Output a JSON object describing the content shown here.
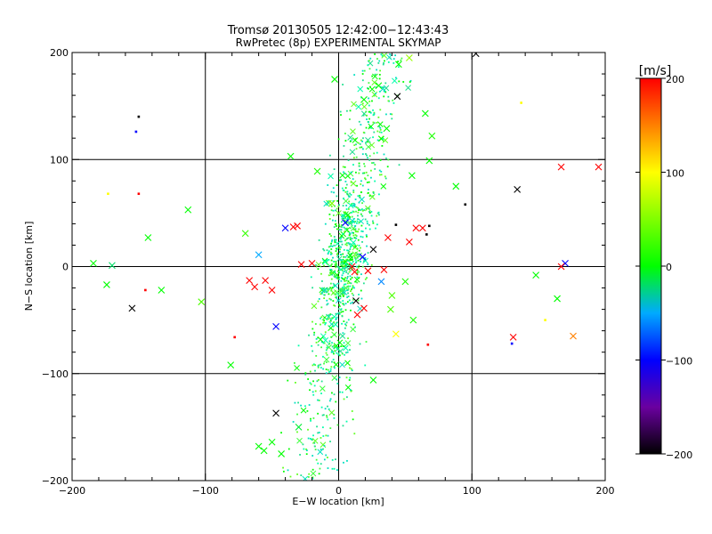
{
  "chart_data": {
    "type": "scatter",
    "title": "Tromsø 20130505 12:42:00−12:43:43",
    "subtitle": "RwPretec (8p) EXPERIMENTAL SKYMAP",
    "xlabel": "E−W location [km]",
    "ylabel": "N−S location [km]",
    "xlim": [
      -200,
      200
    ],
    "ylim": [
      -200,
      200
    ],
    "xticks": [
      -200,
      -100,
      0,
      100,
      200
    ],
    "yticks": [
      -200,
      -100,
      0,
      100,
      200
    ],
    "xtick_labels": [
      "−200",
      "−100",
      "0",
      "100",
      "200"
    ],
    "ytick_labels": [
      "−200",
      "−100",
      "0",
      "100",
      "200"
    ],
    "grid": true,
    "colorbar": {
      "label": "[m/s]",
      "range": [
        -200,
        200
      ],
      "ticks": [
        200,
        100,
        0,
        -100,
        -200
      ],
      "tick_labels": [
        "200",
        "100",
        "0",
        "−100",
        "−200"
      ],
      "colormap_stops": [
        {
          "value": -200,
          "color": "#000000"
        },
        {
          "value": -150,
          "color": "#6a00a0"
        },
        {
          "value": -100,
          "color": "#0000ff"
        },
        {
          "value": -50,
          "color": "#00aaff"
        },
        {
          "value": 0,
          "color": "#00ff00"
        },
        {
          "value": 50,
          "color": "#80ff00"
        },
        {
          "value": 100,
          "color": "#ffff00"
        },
        {
          "value": 150,
          "color": "#ff8000"
        },
        {
          "value": 200,
          "color": "#ff0000"
        }
      ]
    },
    "dot_cloud": {
      "note": "dense cloud of small dot markers, predominantly green-cyan (~0 m/s)",
      "count": 1100,
      "colors": [
        "#00ff00",
        "#00ffaa",
        "#20e090",
        "#40ff40",
        "#00e0c0",
        "#60ff20"
      ]
    },
    "points": [
      {
        "x": 103,
        "y": 199,
        "v": -200,
        "m": "x"
      },
      {
        "x": 44,
        "y": 159,
        "v": -200,
        "m": "x"
      },
      {
        "x": 134,
        "y": 72,
        "v": -200,
        "m": "x"
      },
      {
        "x": 167,
        "y": 93,
        "v": 200,
        "m": "x"
      },
      {
        "x": 195,
        "y": 93,
        "v": 200,
        "m": "x"
      },
      {
        "x": 170,
        "y": 3,
        "v": -100,
        "m": "x"
      },
      {
        "x": 167,
        "y": 0,
        "v": 200,
        "m": "x"
      },
      {
        "x": 176,
        "y": -65,
        "v": 150,
        "m": "x"
      },
      {
        "x": 131,
        "y": -66,
        "v": 200,
        "m": "x"
      },
      {
        "x": -155,
        "y": -39,
        "v": -200,
        "m": "x"
      },
      {
        "x": -47,
        "y": -137,
        "v": -200,
        "m": "x"
      },
      {
        "x": -40,
        "y": 36,
        "v": -100,
        "m": "x"
      },
      {
        "x": -34,
        "y": 37,
        "v": 200,
        "m": "x"
      },
      {
        "x": -31,
        "y": 38,
        "v": 200,
        "m": "x"
      },
      {
        "x": -63,
        "y": -19,
        "v": 200,
        "m": "x"
      },
      {
        "x": -55,
        "y": -13,
        "v": 200,
        "m": "x"
      },
      {
        "x": -50,
        "y": -22,
        "v": 200,
        "m": "x"
      },
      {
        "x": -67,
        "y": -13,
        "v": 200,
        "m": "x"
      },
      {
        "x": -47,
        "y": -56,
        "v": -100,
        "m": "x"
      },
      {
        "x": -60,
        "y": 11,
        "v": -50,
        "m": "x"
      },
      {
        "x": 10,
        "y": 0,
        "v": 200,
        "m": "x"
      },
      {
        "x": 12,
        "y": -5,
        "v": 200,
        "m": "x"
      },
      {
        "x": 22,
        "y": -4,
        "v": 200,
        "m": "x"
      },
      {
        "x": 34,
        "y": -3,
        "v": 200,
        "m": "x"
      },
      {
        "x": 13,
        "y": -32,
        "v": -200,
        "m": "x"
      },
      {
        "x": 26,
        "y": 16,
        "v": -200,
        "m": "x"
      },
      {
        "x": 18,
        "y": 9,
        "v": -100,
        "m": "x"
      },
      {
        "x": 37,
        "y": 27,
        "v": 200,
        "m": "x"
      },
      {
        "x": 53,
        "y": 23,
        "v": 200,
        "m": "x"
      },
      {
        "x": 58,
        "y": 36,
        "v": 200,
        "m": "x"
      },
      {
        "x": 63,
        "y": 36,
        "v": 200,
        "m": "x"
      },
      {
        "x": 14,
        "y": -45,
        "v": 200,
        "m": "x"
      },
      {
        "x": 19,
        "y": -39,
        "v": 200,
        "m": "x"
      },
      {
        "x": -28,
        "y": 2,
        "v": 200,
        "m": "x"
      },
      {
        "x": -20,
        "y": 3,
        "v": 200,
        "m": "x"
      },
      {
        "x": 43,
        "y": -63,
        "v": 100,
        "m": "x"
      },
      {
        "x": 5,
        "y": 41,
        "v": -100,
        "m": "x"
      },
      {
        "x": -150,
        "y": 140,
        "v": -200,
        "m": "."
      },
      {
        "x": -152,
        "y": 126,
        "v": -100,
        "m": "."
      },
      {
        "x": -150,
        "y": 68,
        "v": 200,
        "m": "."
      },
      {
        "x": -145,
        "y": -22,
        "v": 200,
        "m": "."
      },
      {
        "x": -78,
        "y": -66,
        "v": 200,
        "m": "."
      },
      {
        "x": 67,
        "y": -73,
        "v": 200,
        "m": "."
      },
      {
        "x": 95,
        "y": 58,
        "v": -200,
        "m": "."
      },
      {
        "x": 137,
        "y": 153,
        "v": 100,
        "m": "."
      },
      {
        "x": 130,
        "y": -72,
        "v": -100,
        "m": "."
      },
      {
        "x": -173,
        "y": 68,
        "v": 100,
        "m": "."
      },
      {
        "x": 155,
        "y": -50,
        "v": 100,
        "m": "."
      },
      {
        "x": 66,
        "y": 30,
        "v": -200,
        "m": "."
      },
      {
        "x": 68,
        "y": 38,
        "v": -200,
        "m": "."
      },
      {
        "x": 43,
        "y": 39,
        "v": -200,
        "m": "."
      },
      {
        "x": -184,
        "y": 3,
        "v": 0,
        "m": "x"
      },
      {
        "x": -170,
        "y": 1,
        "v": -20,
        "m": "x"
      },
      {
        "x": -174,
        "y": -17,
        "v": 0,
        "m": "x"
      },
      {
        "x": -143,
        "y": 27,
        "v": 0,
        "m": "x"
      },
      {
        "x": -133,
        "y": -22,
        "v": 0,
        "m": "x"
      },
      {
        "x": -113,
        "y": 53,
        "v": 0,
        "m": "x"
      },
      {
        "x": -103,
        "y": -33,
        "v": 30,
        "m": "x"
      },
      {
        "x": -81,
        "y": -92,
        "v": 0,
        "m": "x"
      },
      {
        "x": -70,
        "y": 31,
        "v": 20,
        "m": "x"
      },
      {
        "x": 148,
        "y": -8,
        "v": 0,
        "m": "x"
      },
      {
        "x": 164,
        "y": -30,
        "v": 0,
        "m": "x"
      },
      {
        "x": 88,
        "y": 75,
        "v": 0,
        "m": "x"
      },
      {
        "x": 68,
        "y": 99,
        "v": 0,
        "m": "x"
      },
      {
        "x": 55,
        "y": 85,
        "v": 0,
        "m": "x"
      },
      {
        "x": 65,
        "y": 143,
        "v": 0,
        "m": "x"
      },
      {
        "x": 70,
        "y": 122,
        "v": 10,
        "m": "x"
      },
      {
        "x": -3,
        "y": 175,
        "v": 0,
        "m": "x"
      },
      {
        "x": -36,
        "y": 103,
        "v": 0,
        "m": "x"
      },
      {
        "x": -16,
        "y": 89,
        "v": 10,
        "m": "x"
      },
      {
        "x": -60,
        "y": -168,
        "v": 0,
        "m": "x"
      },
      {
        "x": -56,
        "y": -172,
        "v": 0,
        "m": "x"
      },
      {
        "x": -50,
        "y": -164,
        "v": 0,
        "m": "x"
      },
      {
        "x": -43,
        "y": -175,
        "v": 0,
        "m": "x"
      },
      {
        "x": -30,
        "y": -150,
        "v": -10,
        "m": "x"
      },
      {
        "x": 26,
        "y": -106,
        "v": 0,
        "m": "x"
      },
      {
        "x": 36,
        "y": 129,
        "v": 0,
        "m": "x"
      },
      {
        "x": 19,
        "y": 156,
        "v": 0,
        "m": "x"
      },
      {
        "x": 30,
        "y": 169,
        "v": 0,
        "m": "x"
      },
      {
        "x": 45,
        "y": 189,
        "v": 0,
        "m": "x"
      },
      {
        "x": 53,
        "y": 195,
        "v": 60,
        "m": "x"
      },
      {
        "x": 56,
        "y": -50,
        "v": 10,
        "m": "x"
      },
      {
        "x": 39,
        "y": -40,
        "v": 30,
        "m": "x"
      },
      {
        "x": 40,
        "y": -27,
        "v": 30,
        "m": "x"
      },
      {
        "x": 50,
        "y": -14,
        "v": 10,
        "m": "x"
      },
      {
        "x": -5,
        "y": 59,
        "v": 50,
        "m": "x"
      },
      {
        "x": 32,
        "y": -14,
        "v": -60,
        "m": "x"
      }
    ]
  }
}
